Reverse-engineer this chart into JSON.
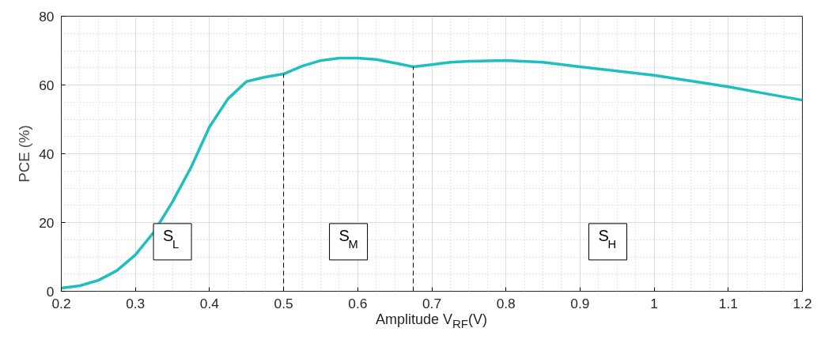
{
  "chart_data": {
    "type": "line",
    "xlabel": "Amplitude V$_{RF}$(V)",
    "ylabel": "PCE (%)",
    "x": [
      0.2,
      0.225,
      0.25,
      0.275,
      0.3,
      0.325,
      0.35,
      0.375,
      0.4,
      0.425,
      0.45,
      0.475,
      0.5,
      0.525,
      0.55,
      0.575,
      0.6,
      0.625,
      0.65,
      0.675,
      0.7,
      0.725,
      0.75,
      0.8,
      0.85,
      0.9,
      1.0,
      1.1,
      1.15,
      1.2
    ],
    "series": [
      {
        "color": "#1fbfbf",
        "values": [
          0.9,
          1.6,
          3.2,
          6,
          10.6,
          17.2,
          26,
          36,
          47.8,
          56,
          61,
          62.3,
          63.2,
          65.5,
          67.1,
          67.8,
          67.8,
          67.4,
          66.4,
          65.3,
          65.9,
          66.6,
          66.9,
          67.1,
          66.6,
          65.3,
          62.8,
          59.5,
          57.5,
          55.6
        ]
      }
    ],
    "xlim": [
      0.2,
      1.2
    ],
    "xticks": [
      0.2,
      0.3,
      0.4,
      0.5,
      0.6,
      0.7,
      0.8,
      0.9,
      1,
      1.1,
      1.2
    ],
    "ylim": [
      0,
      80
    ],
    "yticks": [
      0,
      20,
      40,
      60,
      80
    ],
    "grid": true,
    "marker": "none",
    "line_style": "solid",
    "ref_lines": [
      {
        "axis": "x",
        "value": 0.5,
        "color": "#000000",
        "line_style": "dashed"
      },
      {
        "axis": "x",
        "value": 0.675,
        "color": "#000000",
        "line_style": "dashed"
      }
    ],
    "annotations": [
      "S$_{L}$",
      "S$_{M}$",
      "S$_{H}$"
    ]
  }
}
